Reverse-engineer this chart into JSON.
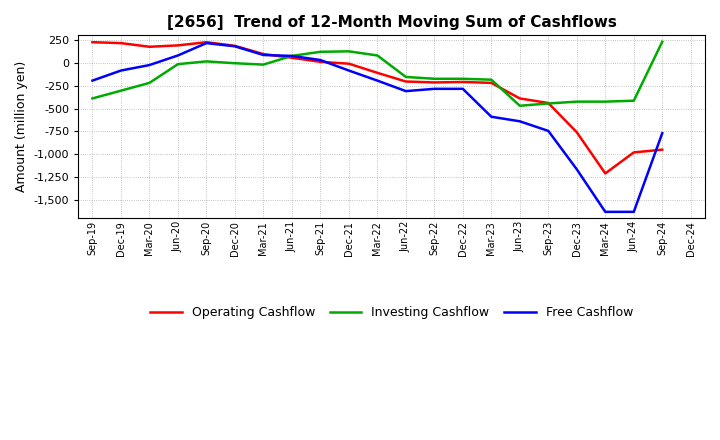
{
  "title": "[2656]  Trend of 12-Month Moving Sum of Cashflows",
  "ylabel": "Amount (million yen)",
  "x_labels": [
    "Sep-19",
    "Dec-19",
    "Mar-20",
    "Jun-20",
    "Sep-20",
    "Dec-20",
    "Mar-21",
    "Jun-21",
    "Sep-21",
    "Dec-21",
    "Mar-22",
    "Jun-22",
    "Sep-22",
    "Dec-22",
    "Mar-23",
    "Jun-23",
    "Sep-23",
    "Dec-23",
    "Mar-24",
    "Jun-24",
    "Sep-24",
    "Dec-24"
  ],
  "operating_cashflow": [
    225,
    215,
    175,
    190,
    225,
    185,
    95,
    55,
    10,
    -10,
    -110,
    -205,
    -215,
    -210,
    -220,
    -390,
    -440,
    -760,
    -1210,
    -980,
    -950,
    null
  ],
  "investing_cashflow": [
    -390,
    -305,
    -220,
    -15,
    15,
    -5,
    -20,
    75,
    120,
    125,
    80,
    -155,
    -175,
    -175,
    -185,
    -470,
    -445,
    -425,
    -425,
    -415,
    230,
    null
  ],
  "free_cashflow": [
    -195,
    -85,
    -25,
    80,
    215,
    180,
    85,
    75,
    30,
    -85,
    -195,
    -310,
    -285,
    -285,
    -590,
    -640,
    -745,
    -1165,
    -1630,
    -1630,
    -770,
    null
  ],
  "operating_color": "#ff0000",
  "investing_color": "#00aa00",
  "free_color": "#0000ff",
  "ylim": [
    -1700,
    300
  ],
  "yticks": [
    250,
    0,
    -250,
    -500,
    -750,
    -1000,
    -1250,
    -1500
  ],
  "bg_color": "#ffffff",
  "grid_color": "#b0b0b0",
  "line_width": 1.8,
  "title_fontsize": 11,
  "ylabel_fontsize": 9,
  "tick_fontsize": 8,
  "xtick_fontsize": 7
}
